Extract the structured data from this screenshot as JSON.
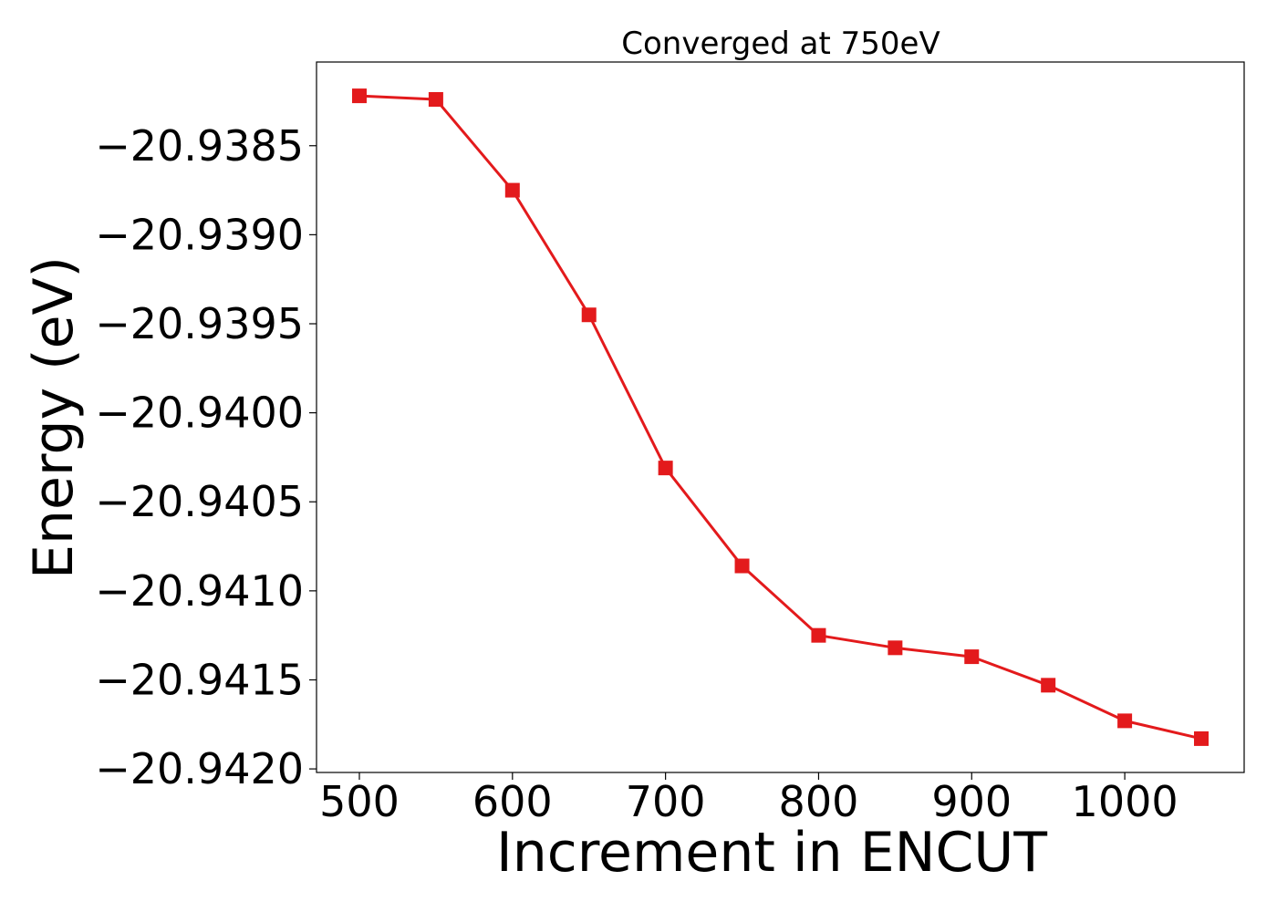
{
  "chart_data": {
    "type": "line",
    "title": "Converged at 750eV",
    "xlabel": "Increment in ENCUT",
    "ylabel": "Energy (eV)",
    "x": [
      500,
      550,
      600,
      650,
      700,
      750,
      800,
      850,
      900,
      950,
      1000,
      1050
    ],
    "series": [
      {
        "values": [
          -20.93822,
          -20.93824,
          -20.93875,
          -20.93945,
          -20.94031,
          -20.94086,
          -20.94125,
          -20.94132,
          -20.94137,
          -20.94153,
          -20.94173,
          -20.94183
        ]
      }
    ],
    "xlim": [
      472,
      1078
    ],
    "ylim": [
      -20.94202,
      -20.93803
    ],
    "xticks": [
      500,
      600,
      700,
      800,
      900,
      1000
    ],
    "xtick_labels": [
      "500",
      "600",
      "700",
      "800",
      "900",
      "1000"
    ],
    "yticks": [
      -20.9385,
      -20.939,
      -20.9395,
      -20.94,
      -20.9405,
      -20.941,
      -20.9415,
      -20.942
    ],
    "ytick_labels": [
      "−20.9385",
      "−20.9390",
      "−20.9395",
      "−20.9400",
      "−20.9405",
      "−20.9410",
      "−20.9415",
      "−20.9420"
    ],
    "grid": false,
    "legend": "none",
    "line_color": "#e31a1c",
    "marker": "square"
  }
}
